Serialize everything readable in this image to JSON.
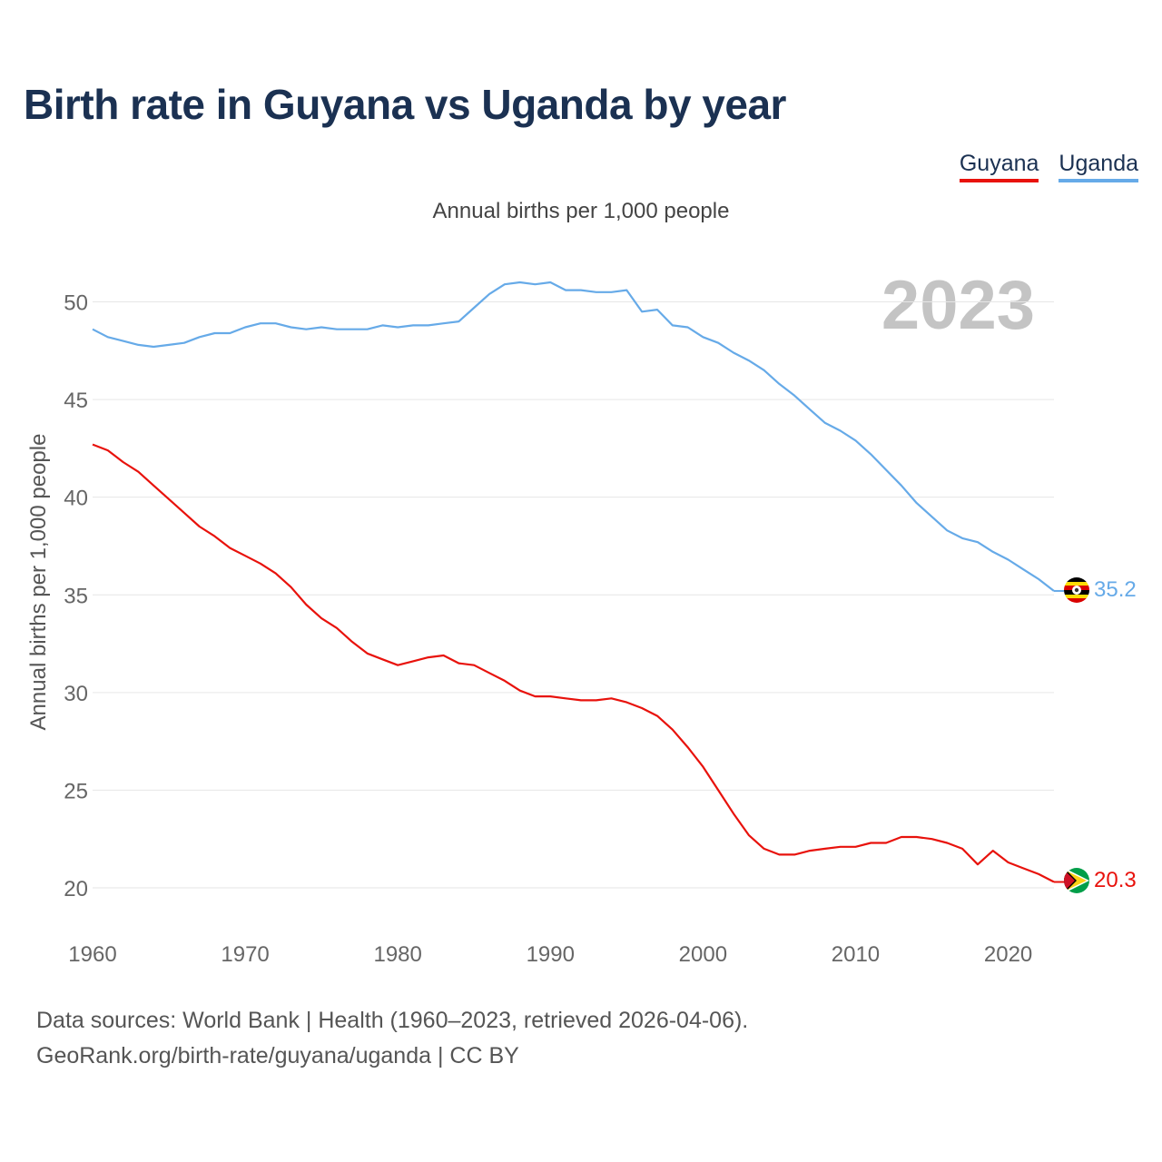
{
  "title": "Birth rate in Guyana vs Uganda by year",
  "legend": [
    {
      "label": "Guyana",
      "color": "#e8120c"
    },
    {
      "label": "Uganda",
      "color": "#66aae8"
    }
  ],
  "year_watermark": "2023",
  "source_line1": "Data sources: World Bank | Health (1960–2023, retrieved 2026-04-06).",
  "source_line2": "GeoRank.org/birth-rate/guyana/uganda | CC BY",
  "chart_data": {
    "type": "line",
    "title": "Birth rate in Guyana vs Uganda by year",
    "subtitle": "Annual births per 1,000 people",
    "xlabel": "",
    "ylabel": "Annual births per 1,000 people",
    "xlim": [
      1960,
      2023
    ],
    "ylim": [
      18,
      53
    ],
    "yticks": [
      20,
      25,
      30,
      35,
      40,
      45,
      50
    ],
    "xticks": [
      1960,
      1970,
      1980,
      1990,
      2000,
      2010,
      2020
    ],
    "grid": true,
    "legend_position": "top-right",
    "x": [
      1960,
      1961,
      1962,
      1963,
      1964,
      1965,
      1966,
      1967,
      1968,
      1969,
      1970,
      1971,
      1972,
      1973,
      1974,
      1975,
      1976,
      1977,
      1978,
      1979,
      1980,
      1981,
      1982,
      1983,
      1984,
      1985,
      1986,
      1987,
      1988,
      1989,
      1990,
      1991,
      1992,
      1993,
      1994,
      1995,
      1996,
      1997,
      1998,
      1999,
      2000,
      2001,
      2002,
      2003,
      2004,
      2005,
      2006,
      2007,
      2008,
      2009,
      2010,
      2011,
      2012,
      2013,
      2014,
      2015,
      2016,
      2017,
      2018,
      2019,
      2020,
      2021,
      2022,
      2023
    ],
    "series": [
      {
        "name": "Guyana",
        "color": "#e8120c",
        "end_label": "20.3",
        "values": [
          42.7,
          42.4,
          41.8,
          41.3,
          40.6,
          39.9,
          39.2,
          38.5,
          38.0,
          37.4,
          37.0,
          36.6,
          36.1,
          35.4,
          34.5,
          33.8,
          33.3,
          32.6,
          32.0,
          31.7,
          31.4,
          31.6,
          31.8,
          31.9,
          31.5,
          31.4,
          31.0,
          30.6,
          30.1,
          29.8,
          29.8,
          29.7,
          29.6,
          29.6,
          29.7,
          29.5,
          29.2,
          28.8,
          28.1,
          27.2,
          26.2,
          25.0,
          23.8,
          22.7,
          22.0,
          21.7,
          21.7,
          21.9,
          22.0,
          22.1,
          22.1,
          22.3,
          22.3,
          22.6,
          22.6,
          22.5,
          22.3,
          22.0,
          21.2,
          21.9,
          21.3,
          21.0,
          20.7,
          20.3
        ]
      },
      {
        "name": "Uganda",
        "color": "#66aae8",
        "end_label": "35.2",
        "values": [
          48.6,
          48.2,
          48.0,
          47.8,
          47.7,
          47.8,
          47.9,
          48.2,
          48.4,
          48.4,
          48.7,
          48.9,
          48.9,
          48.7,
          48.6,
          48.7,
          48.6,
          48.6,
          48.6,
          48.8,
          48.7,
          48.8,
          48.8,
          48.9,
          49.0,
          49.7,
          50.4,
          50.9,
          51.0,
          50.9,
          51.0,
          50.6,
          50.6,
          50.5,
          50.5,
          50.6,
          49.5,
          49.6,
          48.8,
          48.7,
          48.2,
          47.9,
          47.4,
          47.0,
          46.5,
          45.8,
          45.2,
          44.5,
          43.8,
          43.4,
          42.9,
          42.2,
          41.4,
          40.6,
          39.7,
          39.0,
          38.3,
          37.9,
          37.7,
          37.2,
          36.8,
          36.3,
          35.8,
          35.2
        ]
      }
    ]
  }
}
